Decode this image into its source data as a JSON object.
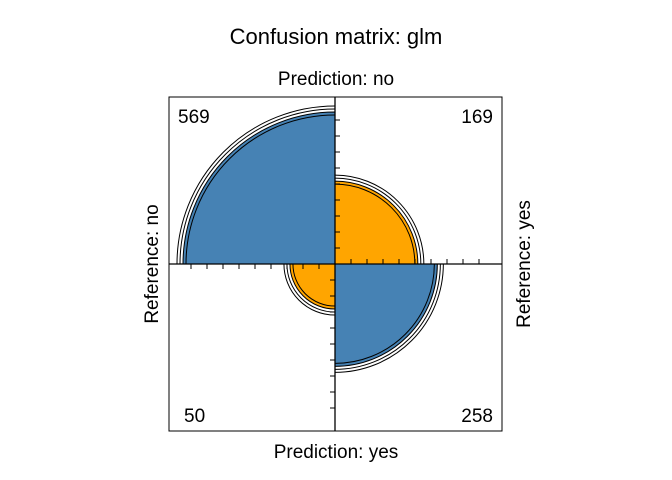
{
  "chart_data": {
    "type": "fourfold",
    "title": "Confusion matrix: glm",
    "top_label": "Prediction: no",
    "bottom_label": "Prediction: yes",
    "left_label": "Reference: no",
    "right_label": "Reference: yes",
    "cells": [
      {
        "prediction": "no",
        "reference": "no",
        "quadrant": "top-left",
        "count": 569,
        "text": "569",
        "color": "#4682B4"
      },
      {
        "prediction": "no",
        "reference": "yes",
        "quadrant": "top-right",
        "count": 169,
        "text": "169",
        "color": "#FFA500"
      },
      {
        "prediction": "yes",
        "reference": "no",
        "quadrant": "bottom-left",
        "count": 50,
        "text": "50",
        "color": "#FFA500"
      },
      {
        "prediction": "yes",
        "reference": "yes",
        "quadrant": "bottom-right",
        "count": 258,
        "text": "258",
        "color": "#4682B4"
      }
    ],
    "confidence_rings": true,
    "grid": false
  }
}
